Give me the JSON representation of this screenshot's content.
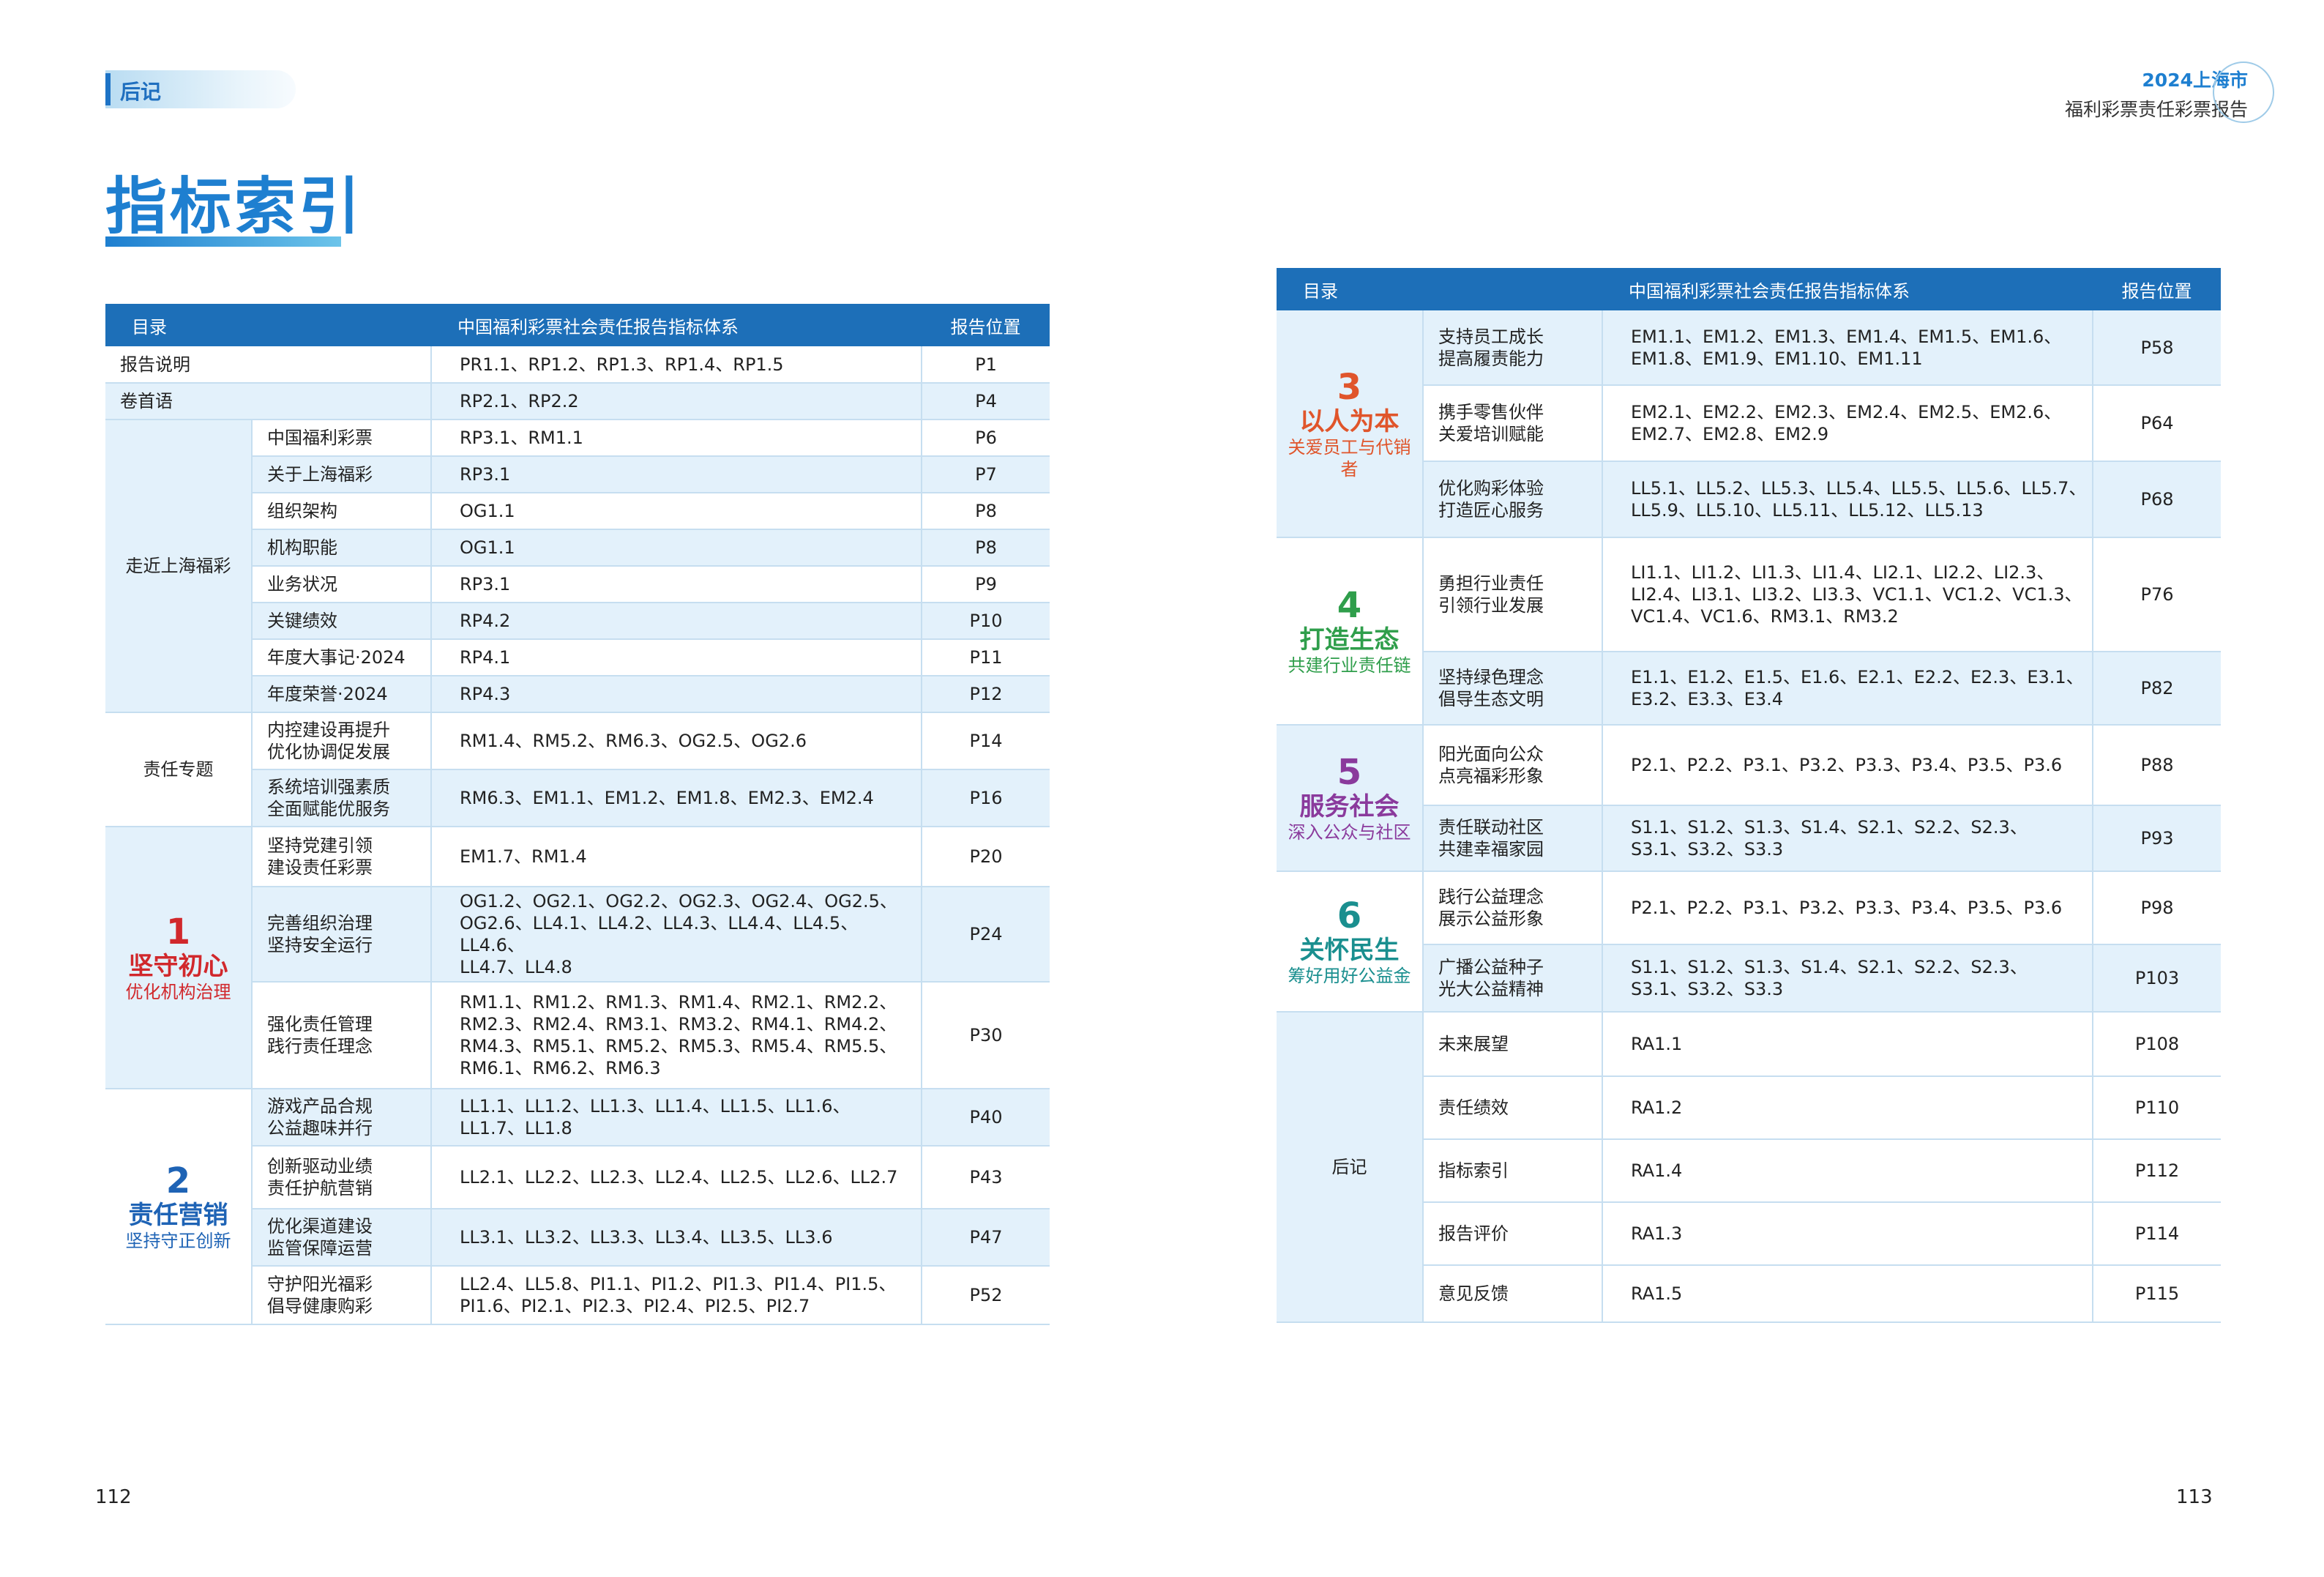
{
  "left": {
    "section_tag": "后记",
    "title": "指标索引",
    "page_number": "112",
    "headers": [
      "目录",
      "中国福利彩票社会责任报告指标体系",
      "报告位置"
    ],
    "rows_simple": [
      {
        "name": "报告说明",
        "codes": "PR1.1、RP1.2、RP1.3、RP1.4、RP1.5",
        "page": "P1"
      },
      {
        "name": "卷首语",
        "codes": "RP2.1、RP2.2",
        "page": "P4"
      }
    ],
    "group_intro": {
      "label": "走近上海福彩",
      "rows": [
        {
          "name": "中国福利彩票",
          "codes": "RP3.1、RM1.1",
          "page": "P6"
        },
        {
          "name": "关于上海福彩",
          "codes": "RP3.1",
          "page": "P7"
        },
        {
          "name": "组织架构",
          "codes": "OG1.1",
          "page": "P8"
        },
        {
          "name": "机构职能",
          "codes": "OG1.1",
          "page": "P8"
        },
        {
          "name": "业务状况",
          "codes": "RP3.1",
          "page": "P9"
        },
        {
          "name": "关键绩效",
          "codes": "RP4.2",
          "page": "P10"
        },
        {
          "name": "年度大事记·2024",
          "codes": "RP4.1",
          "page": "P11"
        },
        {
          "name": "年度荣誉·2024",
          "codes": "RP4.3",
          "page": "P12"
        }
      ]
    },
    "group_topic": {
      "label": "责任专题",
      "rows": [
        {
          "name_1": "内控建设再提升",
          "name_2": "优化协调促发展",
          "codes": "RM1.4、RM5.2、RM6.3、OG2.5、OG2.6",
          "page": "P14"
        },
        {
          "name_1": "系统培训强素质",
          "name_2": "全面赋能优服务",
          "codes": "RM6.3、EM1.1、EM1.2、EM1.8、EM2.3、EM2.4",
          "page": "P16"
        }
      ]
    },
    "group_1": {
      "num": "1",
      "title": "坚守初心",
      "subtitle": "优化机构治理",
      "rows": [
        {
          "name_1": "坚持党建引领",
          "name_2": "建设责任彩票",
          "codes": [
            "EM1.7、RM1.4"
          ],
          "page": "P20"
        },
        {
          "name_1": "完善组织治理",
          "name_2": "坚持安全运行",
          "codes": [
            "OG1.2、OG2.1、OG2.2、OG2.3、OG2.4、OG2.5、",
            "OG2.6、LL4.1、LL4.2、LL4.3、LL4.4、LL4.5、LL4.6、",
            "LL4.7、LL4.8"
          ],
          "page": "P24"
        },
        {
          "name_1": "强化责任管理",
          "name_2": "践行责任理念",
          "codes": [
            "RM1.1、RM1.2、RM1.3、RM1.4、RM2.1、RM2.2、",
            "RM2.3、RM2.4、RM3.1、RM3.2、RM4.1、RM4.2、",
            "RM4.3、RM5.1、RM5.2、RM5.3、RM5.4、RM5.5、",
            "RM6.1、RM6.2、RM6.3"
          ],
          "page": "P30"
        }
      ]
    },
    "group_2": {
      "num": "2",
      "title": "责任营销",
      "subtitle": "坚持守正创新",
      "rows": [
        {
          "name_1": "游戏产品合规",
          "name_2": "公益趣味并行",
          "codes": [
            "LL1.1、LL1.2、LL1.3、LL1.4、LL1.5、LL1.6、",
            "LL1.7、LL1.8"
          ],
          "page": "P40"
        },
        {
          "name_1": "创新驱动业绩",
          "name_2": "责任护航营销",
          "codes": [
            "LL2.1、LL2.2、LL2.3、LL2.4、LL2.5、LL2.6、LL2.7"
          ],
          "page": "P43"
        },
        {
          "name_1": "优化渠道建设",
          "name_2": "监管保障运营",
          "codes": [
            "LL3.1、LL3.2、LL3.3、LL3.4、LL3.5、LL3.6"
          ],
          "page": "P47"
        },
        {
          "name_1": "守护阳光福彩",
          "name_2": "倡导健康购彩",
          "codes": [
            "LL2.4、LL5.8、PI1.1、PI1.2、PI1.3、PI1.4、PI1.5、",
            "PI1.6、PI2.1、PI2.3、PI2.4、PI2.5、PI2.7"
          ],
          "page": "P52"
        }
      ]
    }
  },
  "right": {
    "report_year_line": "2024上海市",
    "report_name_line": "福利彩票责任彩票报告",
    "page_number": "113",
    "headers": [
      "目录",
      "中国福利彩票社会责任报告指标体系",
      "报告位置"
    ],
    "group_3": {
      "num": "3",
      "title": "以人为本",
      "subtitle": "关爱员工与代销者",
      "rows": [
        {
          "name_1": "支持员工成长",
          "name_2": "提高履责能力",
          "codes": [
            "EM1.1、EM1.2、EM1.3、EM1.4、EM1.5、EM1.6、",
            "EM1.8、EM1.9、EM1.10、EM1.11"
          ],
          "page": "P58"
        },
        {
          "name_1": "携手零售伙伴",
          "name_2": "关爱培训赋能",
          "codes": [
            "EM2.1、EM2.2、EM2.3、EM2.4、EM2.5、EM2.6、",
            "EM2.7、EM2.8、EM2.9"
          ],
          "page": "P64"
        },
        {
          "name_1": "优化购彩体验",
          "name_2": "打造匠心服务",
          "codes": [
            "LL5.1、LL5.2、LL5.3、LL5.4、LL5.5、LL5.6、LL5.7、",
            "LL5.9、LL5.10、LL5.11、LL5.12、LL5.13"
          ],
          "page": "P68"
        }
      ]
    },
    "group_4": {
      "num": "4",
      "title": "打造生态",
      "subtitle": "共建行业责任链",
      "rows": [
        {
          "name_1": "勇担行业责任",
          "name_2": "引领行业发展",
          "codes": [
            "LI1.1、LI1.2、LI1.3、LI1.4、LI2.1、LI2.2、LI2.3、",
            "LI2.4、LI3.1、LI3.2、LI3.3、VC1.1、VC1.2、VC1.3、",
            "VC1.4、VC1.6、RM3.1、RM3.2"
          ],
          "page": "P76"
        },
        {
          "name_1": "坚持绿色理念",
          "name_2": "倡导生态文明",
          "codes": [
            "E1.1、E1.2、E1.5、E1.6、E2.1、E2.2、E2.3、E3.1、",
            "E3.2、E3.3、E3.4"
          ],
          "page": "P82"
        }
      ]
    },
    "group_5": {
      "num": "5",
      "title": "服务社会",
      "subtitle": "深入公众与社区",
      "rows": [
        {
          "name_1": "阳光面向公众",
          "name_2": "点亮福彩形象",
          "codes": [
            "P2.1、P2.2、P3.1、P3.2、P3.3、P3.4、P3.5、P3.6"
          ],
          "page": "P88"
        },
        {
          "name_1": "责任联动社区",
          "name_2": "共建幸福家园",
          "codes": [
            "S1.1、S1.2、S1.3、S1.4、S2.1、S2.2、S2.3、",
            "S3.1、S3.2、S3.3"
          ],
          "page": "P93"
        }
      ]
    },
    "group_6": {
      "num": "6",
      "title": "关怀民生",
      "subtitle": "筹好用好公益金",
      "rows": [
        {
          "name_1": "践行公益理念",
          "name_2": "展示公益形象",
          "codes": [
            "P2.1、P2.2、P3.1、P3.2、P3.3、P3.4、P3.5、P3.6"
          ],
          "page": "P98"
        },
        {
          "name_1": "广播公益种子",
          "name_2": "光大公益精神",
          "codes": [
            "S1.1、S1.2、S1.3、S1.4、S2.1、S2.2、S2.3、",
            "S3.1、S3.2、S3.3"
          ],
          "page": "P103"
        }
      ]
    },
    "group_epilogue": {
      "label": "后记",
      "rows": [
        {
          "name": "未来展望",
          "codes": "RA1.1",
          "page": "P108"
        },
        {
          "name": "责任绩效",
          "codes": "RA1.2",
          "page": "P110"
        },
        {
          "name": "指标索引",
          "codes": "RA1.4",
          "page": "P112"
        },
        {
          "name": "报告评价",
          "codes": "RA1.3",
          "page": "P114"
        },
        {
          "name": "意见反馈",
          "codes": "RA1.5",
          "page": "P115"
        }
      ]
    },
    "colors": {
      "header_bg": "#1d6fb8",
      "accent_blue": "#1e7fd0",
      "row_alt": "#e3f1fb",
      "g1": "#d1282c",
      "g2": "#1e63b5",
      "g3": "#e0552b",
      "g4": "#2f9e4b",
      "g5": "#8a3a9c",
      "g6": "#1a8f8f"
    }
  }
}
